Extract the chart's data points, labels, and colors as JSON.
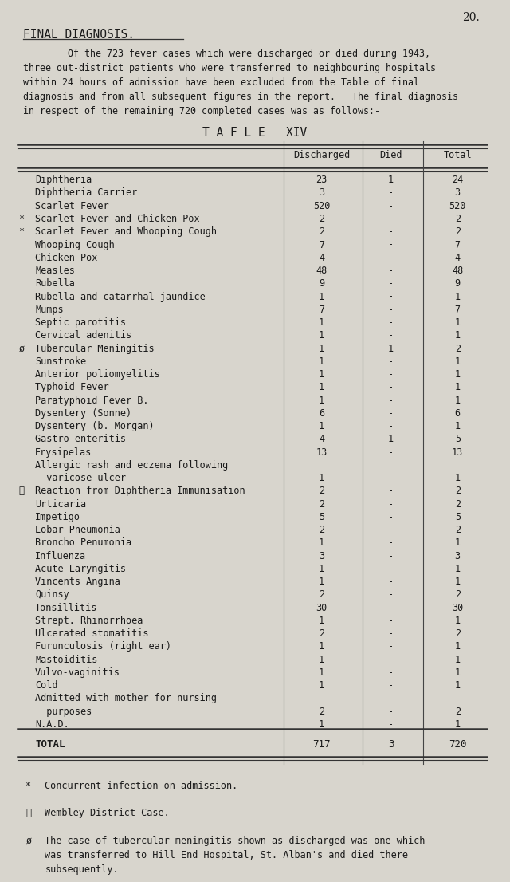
{
  "page_number": "20.",
  "section_title": "FINAL DIAGNOSIS.",
  "intro_text": [
    "        Of the 723 fever cases which were discharged or died during 1943,",
    "three out-district patients who were transferred to neighbouring hospitals",
    "within 24 hours of admission have been excluded from the Table of final",
    "diagnosis and from all subsequent figures in the report.   The final diagnosis",
    "in respect of the remaining 720 completed cases was as follows:-"
  ],
  "table_title": "T A F L E   XIV",
  "rows": [
    {
      "prefix": "",
      "label": "Diphtheria",
      "discharged": "23",
      "died": "1",
      "total": "24"
    },
    {
      "prefix": "",
      "label": "Diphtheria Carrier",
      "discharged": "3",
      "died": "-",
      "total": "3"
    },
    {
      "prefix": "",
      "label": "Scarlet Fever",
      "discharged": "520",
      "died": "-",
      "total": "520"
    },
    {
      "prefix": "*",
      "label": "Scarlet Fever and Chicken Pox",
      "discharged": "2",
      "died": "-",
      "total": "2"
    },
    {
      "prefix": "*",
      "label": "Scarlet Fever and Whooping Cough",
      "discharged": "2",
      "died": "-",
      "total": "2"
    },
    {
      "prefix": "",
      "label": "Whooping Cough",
      "discharged": "7",
      "died": "-",
      "total": "7"
    },
    {
      "prefix": "",
      "label": "Chicken Pox",
      "discharged": "4",
      "died": "-",
      "total": "4"
    },
    {
      "prefix": "",
      "label": "Measles",
      "discharged": "48",
      "died": "-",
      "total": "48"
    },
    {
      "prefix": "",
      "label": "Rubella",
      "discharged": "9",
      "died": "-",
      "total": "9"
    },
    {
      "prefix": "",
      "label": "Rubella and catarrhal jaundice",
      "discharged": "1",
      "died": "-",
      "total": "1"
    },
    {
      "prefix": "",
      "label": "Mumps",
      "discharged": "7",
      "died": "-",
      "total": "7"
    },
    {
      "prefix": "",
      "label": "Septic parotitis",
      "discharged": "1",
      "died": "-",
      "total": "1"
    },
    {
      "prefix": "",
      "label": "Cervical adenitis",
      "discharged": "1",
      "died": "-",
      "total": "1"
    },
    {
      "prefix": "ø",
      "label": "Tubercular Meningitis",
      "discharged": "1",
      "died": "1",
      "total": "2"
    },
    {
      "prefix": "",
      "label": "Sunstroke",
      "discharged": "1",
      "died": "-",
      "total": "1"
    },
    {
      "prefix": "",
      "label": "Anterior poliomyelitis",
      "discharged": "1",
      "died": "-",
      "total": "1"
    },
    {
      "prefix": "",
      "label": "Typhoid Fever",
      "discharged": "1",
      "died": "-",
      "total": "1"
    },
    {
      "prefix": "",
      "label": "Paratyphoid Fever B.",
      "discharged": "1",
      "died": "-",
      "total": "1"
    },
    {
      "prefix": "",
      "label": "Dysentery (Sonne)",
      "discharged": "6",
      "died": "-",
      "total": "6"
    },
    {
      "prefix": "",
      "label": "Dysentery (b. Morgan)",
      "discharged": "1",
      "died": "-",
      "total": "1"
    },
    {
      "prefix": "",
      "label": "Gastro enteritis",
      "discharged": "4",
      "died": "1",
      "total": "5"
    },
    {
      "prefix": "",
      "label": "Erysipelas",
      "discharged": "13",
      "died": "-",
      "total": "13"
    },
    {
      "prefix": "",
      "label": "Allergic rash and eczema following",
      "discharged": "",
      "died": "",
      "total": ""
    },
    {
      "prefix": "",
      "label": "  varicose ulcer",
      "discharged": "1",
      "died": "-",
      "total": "1"
    },
    {
      "prefix": "Ⅱ",
      "label": "Reaction from Diphtheria Immunisation",
      "discharged": "2",
      "died": "-",
      "total": "2"
    },
    {
      "prefix": "",
      "label": "Urticaria",
      "discharged": "2",
      "died": "-",
      "total": "2"
    },
    {
      "prefix": "",
      "label": "Impetigo",
      "discharged": "5",
      "died": "-",
      "total": "5"
    },
    {
      "prefix": "",
      "label": "Lobar Pneumonia",
      "discharged": "2",
      "died": "-",
      "total": "2"
    },
    {
      "prefix": "",
      "label": "Broncho Penumonia",
      "discharged": "1",
      "died": "-",
      "total": "1"
    },
    {
      "prefix": "",
      "label": "Influenza",
      "discharged": "3",
      "died": "-",
      "total": "3"
    },
    {
      "prefix": "",
      "label": "Acute Laryngitis",
      "discharged": "1",
      "died": "-",
      "total": "1"
    },
    {
      "prefix": "",
      "label": "Vincents Angina",
      "discharged": "1",
      "died": "-",
      "total": "1"
    },
    {
      "prefix": "",
      "label": "Quinsy",
      "discharged": "2",
      "died": "-",
      "total": "2"
    },
    {
      "prefix": "",
      "label": "Tonsillitis",
      "discharged": "30",
      "died": "-",
      "total": "30"
    },
    {
      "prefix": "",
      "label": "Strept. Rhinorrhoea",
      "discharged": "1",
      "died": "-",
      "total": "1"
    },
    {
      "prefix": "",
      "label": "Ulcerated stomatitis",
      "discharged": "2",
      "died": "-",
      "total": "2"
    },
    {
      "prefix": "",
      "label": "Furunculosis (right ear)",
      "discharged": "1",
      "died": "-",
      "total": "1"
    },
    {
      "prefix": "",
      "label": "Mastoiditis",
      "discharged": "1",
      "died": "-",
      "total": "1"
    },
    {
      "prefix": "",
      "label": "Vulvo-vaginitis",
      "discharged": "1",
      "died": "-",
      "total": "1"
    },
    {
      "prefix": "",
      "label": "Cold",
      "discharged": "1",
      "died": "-",
      "total": "1"
    },
    {
      "prefix": "",
      "label": "Admitted with mother for nursing",
      "discharged": "",
      "died": "",
      "total": ""
    },
    {
      "prefix": "",
      "label": "  purposes",
      "discharged": "2",
      "died": "-",
      "total": "2"
    },
    {
      "prefix": "",
      "label": "N.A.D.",
      "discharged": "1",
      "died": "-",
      "total": "1"
    }
  ],
  "total_row": {
    "label": "TOTAL",
    "discharged": "717",
    "died": "3",
    "total": "720"
  },
  "footnotes": [
    {
      "symbol": "*",
      "text": "Concurrent infection on admission."
    },
    {
      "symbol": "Ⅱ",
      "text": "Wembley District Case."
    },
    {
      "symbol": "ø",
      "text": "The case of tubercular meningitis shown as discharged was one which\nwas transferred to Hill End Hospital, St. Alban's and died there\nsubsequently."
    }
  ],
  "bg_color": "#d8d5cd",
  "text_color": "#1a1a1a",
  "font_size": 8.5,
  "title_font_size": 10.5
}
